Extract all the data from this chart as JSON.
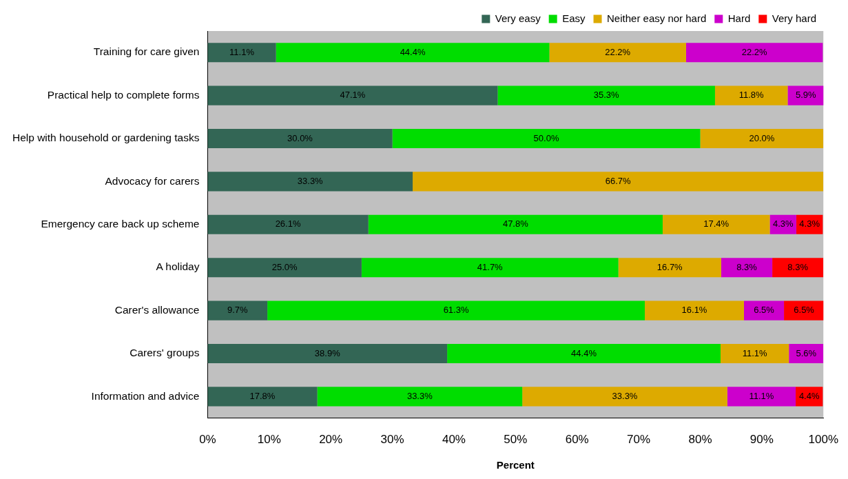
{
  "chart_data": {
    "type": "bar",
    "orientation": "horizontal",
    "stacked": true,
    "xlabel": "Percent",
    "legend": "top",
    "grid": false,
    "categories": [
      "Training for care given",
      "Practical help to complete forms",
      "Help with household or gardening tasks",
      "Advocacy for carers",
      "Emergency care back up scheme",
      "A holiday",
      "Carer's allowance",
      "Carers' groups",
      "Information and advice"
    ],
    "xlim": [
      0,
      100
    ],
    "xticks": [
      {
        "value": 0,
        "label": "0%"
      },
      {
        "value": 10,
        "label": "10%"
      },
      {
        "value": 20,
        "label": "20%"
      },
      {
        "value": 30,
        "label": "30%"
      },
      {
        "value": 40,
        "label": "40%"
      },
      {
        "value": 50,
        "label": "50%"
      },
      {
        "value": 60,
        "label": "60%"
      },
      {
        "value": 70,
        "label": "70%"
      },
      {
        "value": 80,
        "label": "80%"
      },
      {
        "value": 90,
        "label": "90%"
      },
      {
        "value": 100,
        "label": "100%"
      }
    ],
    "series": [
      {
        "name": "Very easy",
        "color": "#336655",
        "values": [
          11.1,
          47.1,
          30.0,
          33.3,
          26.1,
          25.0,
          9.7,
          38.9,
          17.8
        ],
        "value_labels": [
          "11.1%",
          "47.1%",
          "30.0%",
          "33.3%",
          "26.1%",
          "25.0%",
          "9.7%",
          "38.9%",
          "17.8%"
        ]
      },
      {
        "name": "Easy",
        "color": "#00dd00",
        "values": [
          44.4,
          35.3,
          50.0,
          null,
          47.8,
          41.7,
          61.3,
          44.4,
          33.3
        ],
        "value_labels": [
          "44.4%",
          "35.3%",
          "50.0%",
          null,
          "47.8%",
          "41.7%",
          "61.3%",
          "44.4%",
          "33.3%"
        ]
      },
      {
        "name": "Neither easy nor hard",
        "color": "#ddaa00",
        "values": [
          22.2,
          11.8,
          20.0,
          66.7,
          17.4,
          16.7,
          16.1,
          11.1,
          33.3
        ],
        "value_labels": [
          "22.2%",
          "11.8%",
          "20.0%",
          "66.7%",
          "17.4%",
          "16.7%",
          "16.1%",
          "11.1%",
          "33.3%"
        ]
      },
      {
        "name": "Hard",
        "color": "#cc00cc",
        "values": [
          22.2,
          5.9,
          null,
          null,
          4.3,
          8.3,
          6.5,
          5.6,
          11.1
        ],
        "value_labels": [
          "22.2%",
          "5.9%",
          null,
          null,
          "4.3%",
          "8.3%",
          "6.5%",
          "5.6%",
          "11.1%"
        ]
      },
      {
        "name": "Very hard",
        "color": "#ff0000",
        "values": [
          null,
          null,
          null,
          null,
          4.3,
          8.3,
          6.5,
          null,
          4.4
        ],
        "value_labels": [
          null,
          null,
          null,
          null,
          "4.3%",
          "8.3%",
          "6.5%",
          null,
          "4.4%"
        ]
      }
    ]
  }
}
